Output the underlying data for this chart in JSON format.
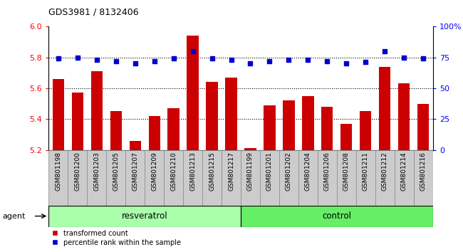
{
  "title": "GDS3981 / 8132406",
  "categories": [
    "GSM801198",
    "GSM801200",
    "GSM801203",
    "GSM801205",
    "GSM801207",
    "GSM801209",
    "GSM801210",
    "GSM801213",
    "GSM801215",
    "GSM801217",
    "GSM801199",
    "GSM801201",
    "GSM801202",
    "GSM801204",
    "GSM801206",
    "GSM801208",
    "GSM801211",
    "GSM801212",
    "GSM801214",
    "GSM801216"
  ],
  "bar_values": [
    5.66,
    5.57,
    5.71,
    5.45,
    5.26,
    5.42,
    5.47,
    5.94,
    5.64,
    5.67,
    5.21,
    5.49,
    5.52,
    5.55,
    5.48,
    5.37,
    5.45,
    5.74,
    5.63,
    5.5
  ],
  "percentile_values": [
    74,
    75,
    73,
    72,
    70,
    72,
    74,
    80,
    74,
    73,
    70,
    72,
    73,
    73,
    72,
    70,
    71,
    80,
    75,
    74
  ],
  "resveratrol_count": 10,
  "control_count": 10,
  "ylim_left": [
    5.2,
    6.0
  ],
  "ylim_right": [
    0,
    100
  ],
  "y_ticks_left": [
    5.2,
    5.4,
    5.6,
    5.8,
    6.0
  ],
  "y_ticks_right": [
    0,
    25,
    50,
    75,
    100
  ],
  "y_tick_labels_right": [
    "0",
    "25",
    "50",
    "75",
    "100%"
  ],
  "bar_color": "#cc0000",
  "percentile_color": "#0000cc",
  "resveratrol_color": "#aaffaa",
  "control_color": "#66ee66",
  "tick_label_bg": "#cccccc",
  "legend_bar_label": "transformed count",
  "legend_pct_label": "percentile rank within the sample",
  "agent_text": "agent",
  "resveratrol_text": "resveratrol",
  "control_text": "control",
  "dotted_lines": [
    5.4,
    5.6,
    5.8
  ]
}
